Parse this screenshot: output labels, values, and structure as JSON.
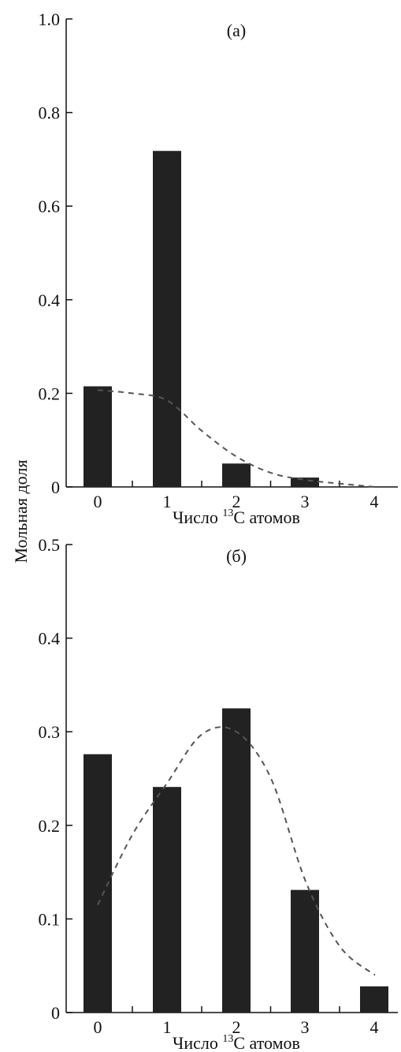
{
  "ylabel": "Мольная доля",
  "chart_data": [
    {
      "type": "bar",
      "panel_label": "(а)",
      "xlabel_parts": [
        "Число ",
        "13",
        "C атомов"
      ],
      "categories": [
        "0",
        "1",
        "2",
        "3",
        "4"
      ],
      "values": [
        0.215,
        0.718,
        0.05,
        0.02,
        0.0
      ],
      "fit_curve": {
        "x": [
          0,
          0.5,
          1,
          1.5,
          2,
          2.5,
          3,
          3.5,
          4
        ],
        "y": [
          0.207,
          0.2,
          0.185,
          0.12,
          0.065,
          0.03,
          0.015,
          0.007,
          0.0
        ]
      },
      "ylim": [
        0,
        1.0
      ],
      "yticks": [
        0,
        0.2,
        0.4,
        0.6,
        0.8,
        1.0
      ],
      "ytick_labels": [
        "0",
        "0.2",
        "0.4",
        "0.6",
        "0.8",
        "1.0"
      ]
    },
    {
      "type": "bar",
      "panel_label": "(б)",
      "xlabel_parts": [
        "Число ",
        "13",
        "C атомов"
      ],
      "categories": [
        "0",
        "1",
        "2",
        "3",
        "4"
      ],
      "values": [
        0.276,
        0.241,
        0.325,
        0.131,
        0.028
      ],
      "fit_curve": {
        "x": [
          0,
          0.5,
          1,
          1.5,
          2,
          2.5,
          3,
          3.5,
          4
        ],
        "y": [
          0.115,
          0.19,
          0.245,
          0.297,
          0.3,
          0.25,
          0.14,
          0.07,
          0.04
        ]
      },
      "ylim": [
        0,
        0.5
      ],
      "yticks": [
        0,
        0.1,
        0.2,
        0.3,
        0.4,
        0.5
      ],
      "ytick_labels": [
        "0",
        "0.1",
        "0.2",
        "0.3",
        "0.4",
        "0.5"
      ]
    }
  ]
}
